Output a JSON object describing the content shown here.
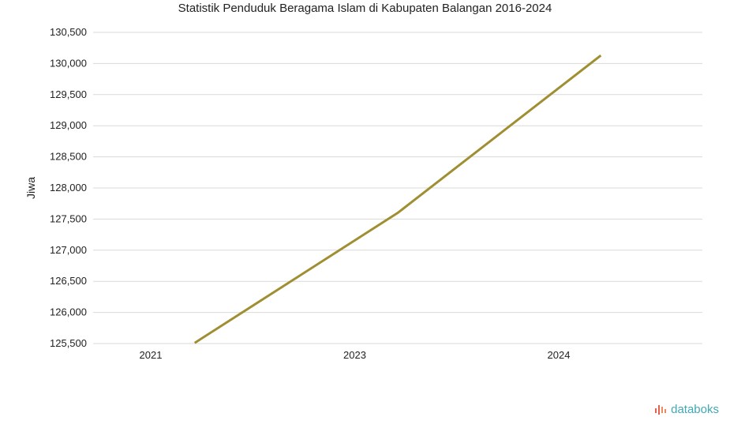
{
  "chart_data": {
    "type": "line",
    "title": "Statistik Penduduk Beragama Islam di Kabupaten Balangan 2016-2024",
    "ylabel": "Jiwa",
    "xlabel": "",
    "categories": [
      "2021",
      "2023",
      "2024"
    ],
    "series": [
      {
        "values": [
          125510,
          127600,
          130130
        ],
        "color": "#a08f32"
      }
    ],
    "yticks": [
      125500,
      126000,
      126500,
      127000,
      127500,
      128000,
      128500,
      129000,
      129500,
      130000,
      130500
    ],
    "ytick_labels": [
      "125,500",
      "126,000",
      "126,500",
      "127,000",
      "127,500",
      "128,000",
      "128,500",
      "129,000",
      "129,500",
      "130,000",
      "130,500"
    ],
    "ylim": [
      125500,
      130500
    ],
    "grid": true,
    "gridline_color": "#d9d9d9"
  },
  "brand": {
    "name": "databoks",
    "color": "#3fa9b5",
    "icon": "databoks-logo-icon"
  }
}
